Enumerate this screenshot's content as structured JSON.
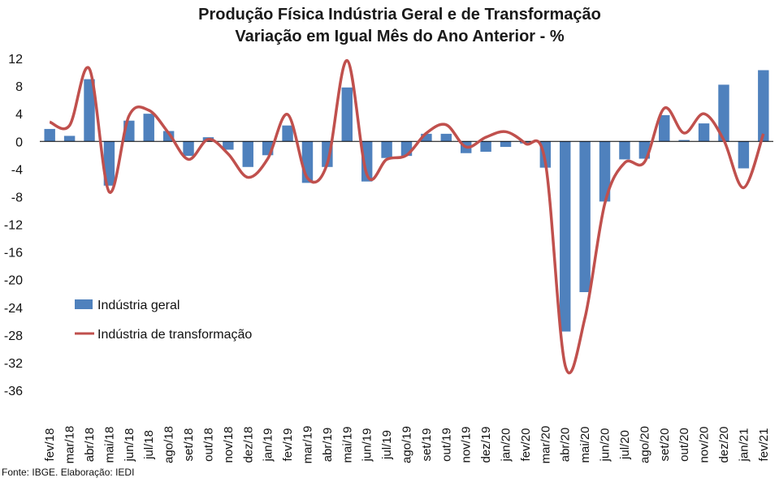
{
  "chart_data": {
    "type": "bar",
    "title": "Produção Física Indústria Geral e de Transformação",
    "subtitle": "Variação em Igual Mês do Ano Anterior - %",
    "source": "Fonte: IBGE. Elaboração: IEDI",
    "categories": [
      "fev/18",
      "mar/18",
      "abr/18",
      "mai/18",
      "jun/18",
      "jul/18",
      "ago/18",
      "set/18",
      "out/18",
      "nov/18",
      "dez/18",
      "jan/19",
      "fev/19",
      "mar/19",
      "abr/19",
      "mai/19",
      "jun/19",
      "jul/19",
      "ago/19",
      "set/19",
      "out/19",
      "nov/19",
      "dez/19",
      "jan/20",
      "fev/20",
      "mar/20",
      "abr/20",
      "mai/20",
      "jun/20",
      "jul/20",
      "ago/20",
      "set/20",
      "out/20",
      "nov/20",
      "dez/20",
      "jan/21",
      "fev/21"
    ],
    "series": [
      {
        "name": "Indústria geral",
        "kind": "bar",
        "color": "#4F81BD",
        "values": [
          1.8,
          0.8,
          9.0,
          -6.4,
          3.0,
          4.0,
          1.5,
          -2.1,
          0.6,
          -1.2,
          -3.7,
          -2.0,
          2.3,
          -6.0,
          -3.7,
          7.8,
          -5.8,
          -2.4,
          -2.1,
          1.1,
          1.1,
          -1.7,
          -1.5,
          -0.8,
          -0.3,
          -3.8,
          -27.5,
          -21.8,
          -8.7,
          -2.6,
          -2.5,
          3.8,
          0.2,
          2.6,
          8.2,
          -3.9,
          10.3
        ]
      },
      {
        "name": "Indústria de transformação",
        "kind": "line",
        "color": "#C0504D",
        "values": [
          2.8,
          2.3,
          10.5,
          -7.3,
          3.7,
          4.5,
          1.2,
          -2.6,
          0.3,
          -1.8,
          -5.2,
          -2.5,
          3.9,
          -5.3,
          -3.2,
          11.7,
          -4.8,
          -2.6,
          -2.0,
          1.2,
          2.4,
          -0.8,
          0.6,
          1.4,
          -0.3,
          -3.0,
          -32.4,
          -25.5,
          -9.0,
          -3.1,
          -3.0,
          4.8,
          1.2,
          4.0,
          0.2,
          -6.7,
          1.1
        ]
      }
    ],
    "ylim": [
      -36,
      12
    ],
    "yticks": [
      "12",
      "8",
      "4",
      "0",
      "-4",
      "-8",
      "-12",
      "-16",
      "-20",
      "-24",
      "-28",
      "-32",
      "-36"
    ],
    "grid": false,
    "legend_position": "left-middle",
    "xlabel": "",
    "ylabel": ""
  }
}
